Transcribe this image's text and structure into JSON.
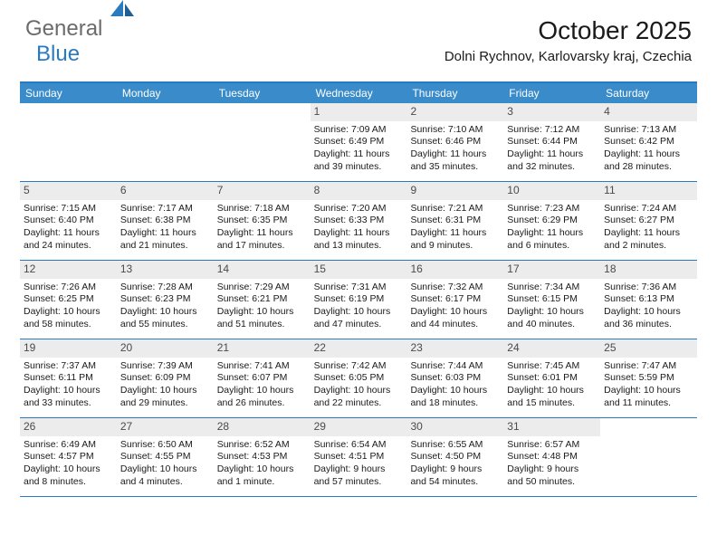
{
  "logo": {
    "text1": "General",
    "text2": "Blue"
  },
  "title": "October 2025",
  "location": "Dolni Rychnov, Karlovarsky kraj, Czechia",
  "colors": {
    "header_bg": "#3a8bc9",
    "border": "#2a7ac0",
    "num_bg": "#ececec",
    "logo_gray": "#6b6b6b",
    "logo_blue": "#2a7ac0",
    "text": "#1a1a1a"
  },
  "dayNames": [
    "Sunday",
    "Monday",
    "Tuesday",
    "Wednesday",
    "Thursday",
    "Friday",
    "Saturday"
  ],
  "weeks": [
    [
      {
        "n": "",
        "empty": true
      },
      {
        "n": "",
        "empty": true
      },
      {
        "n": "",
        "empty": true
      },
      {
        "n": "1",
        "sr": "7:09 AM",
        "ss": "6:49 PM",
        "dl": "11 hours and 39 minutes."
      },
      {
        "n": "2",
        "sr": "7:10 AM",
        "ss": "6:46 PM",
        "dl": "11 hours and 35 minutes."
      },
      {
        "n": "3",
        "sr": "7:12 AM",
        "ss": "6:44 PM",
        "dl": "11 hours and 32 minutes."
      },
      {
        "n": "4",
        "sr": "7:13 AM",
        "ss": "6:42 PM",
        "dl": "11 hours and 28 minutes."
      }
    ],
    [
      {
        "n": "5",
        "sr": "7:15 AM",
        "ss": "6:40 PM",
        "dl": "11 hours and 24 minutes."
      },
      {
        "n": "6",
        "sr": "7:17 AM",
        "ss": "6:38 PM",
        "dl": "11 hours and 21 minutes."
      },
      {
        "n": "7",
        "sr": "7:18 AM",
        "ss": "6:35 PM",
        "dl": "11 hours and 17 minutes."
      },
      {
        "n": "8",
        "sr": "7:20 AM",
        "ss": "6:33 PM",
        "dl": "11 hours and 13 minutes."
      },
      {
        "n": "9",
        "sr": "7:21 AM",
        "ss": "6:31 PM",
        "dl": "11 hours and 9 minutes."
      },
      {
        "n": "10",
        "sr": "7:23 AM",
        "ss": "6:29 PM",
        "dl": "11 hours and 6 minutes."
      },
      {
        "n": "11",
        "sr": "7:24 AM",
        "ss": "6:27 PM",
        "dl": "11 hours and 2 minutes."
      }
    ],
    [
      {
        "n": "12",
        "sr": "7:26 AM",
        "ss": "6:25 PM",
        "dl": "10 hours and 58 minutes."
      },
      {
        "n": "13",
        "sr": "7:28 AM",
        "ss": "6:23 PM",
        "dl": "10 hours and 55 minutes."
      },
      {
        "n": "14",
        "sr": "7:29 AM",
        "ss": "6:21 PM",
        "dl": "10 hours and 51 minutes."
      },
      {
        "n": "15",
        "sr": "7:31 AM",
        "ss": "6:19 PM",
        "dl": "10 hours and 47 minutes."
      },
      {
        "n": "16",
        "sr": "7:32 AM",
        "ss": "6:17 PM",
        "dl": "10 hours and 44 minutes."
      },
      {
        "n": "17",
        "sr": "7:34 AM",
        "ss": "6:15 PM",
        "dl": "10 hours and 40 minutes."
      },
      {
        "n": "18",
        "sr": "7:36 AM",
        "ss": "6:13 PM",
        "dl": "10 hours and 36 minutes."
      }
    ],
    [
      {
        "n": "19",
        "sr": "7:37 AM",
        "ss": "6:11 PM",
        "dl": "10 hours and 33 minutes."
      },
      {
        "n": "20",
        "sr": "7:39 AM",
        "ss": "6:09 PM",
        "dl": "10 hours and 29 minutes."
      },
      {
        "n": "21",
        "sr": "7:41 AM",
        "ss": "6:07 PM",
        "dl": "10 hours and 26 minutes."
      },
      {
        "n": "22",
        "sr": "7:42 AM",
        "ss": "6:05 PM",
        "dl": "10 hours and 22 minutes."
      },
      {
        "n": "23",
        "sr": "7:44 AM",
        "ss": "6:03 PM",
        "dl": "10 hours and 18 minutes."
      },
      {
        "n": "24",
        "sr": "7:45 AM",
        "ss": "6:01 PM",
        "dl": "10 hours and 15 minutes."
      },
      {
        "n": "25",
        "sr": "7:47 AM",
        "ss": "5:59 PM",
        "dl": "10 hours and 11 minutes."
      }
    ],
    [
      {
        "n": "26",
        "sr": "6:49 AM",
        "ss": "4:57 PM",
        "dl": "10 hours and 8 minutes."
      },
      {
        "n": "27",
        "sr": "6:50 AM",
        "ss": "4:55 PM",
        "dl": "10 hours and 4 minutes."
      },
      {
        "n": "28",
        "sr": "6:52 AM",
        "ss": "4:53 PM",
        "dl": "10 hours and 1 minute."
      },
      {
        "n": "29",
        "sr": "6:54 AM",
        "ss": "4:51 PM",
        "dl": "9 hours and 57 minutes."
      },
      {
        "n": "30",
        "sr": "6:55 AM",
        "ss": "4:50 PM",
        "dl": "9 hours and 54 minutes."
      },
      {
        "n": "31",
        "sr": "6:57 AM",
        "ss": "4:48 PM",
        "dl": "9 hours and 50 minutes."
      },
      {
        "n": "",
        "empty": true
      }
    ]
  ],
  "labels": {
    "sunrise": "Sunrise:",
    "sunset": "Sunset:",
    "daylight": "Daylight:"
  }
}
